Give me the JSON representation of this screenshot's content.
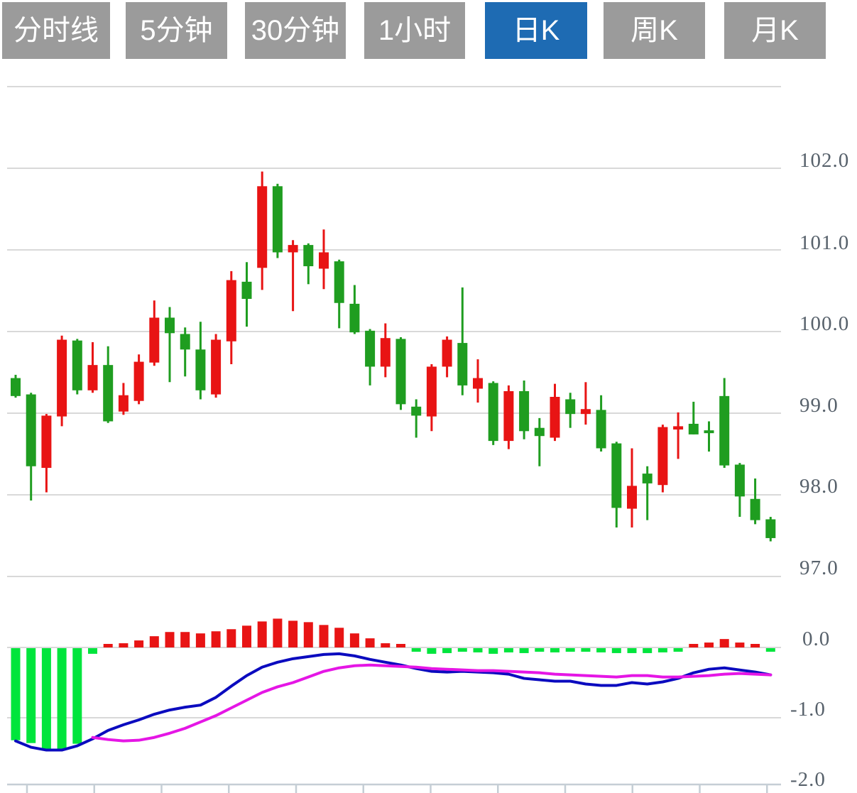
{
  "toolbar": {
    "tabs": [
      {
        "label": "分时线",
        "active": false
      },
      {
        "label": "5分钟",
        "active": false
      },
      {
        "label": "30分钟",
        "active": false
      },
      {
        "label": "1小时",
        "active": false
      },
      {
        "label": "日K",
        "active": true
      },
      {
        "label": "周K",
        "active": false
      },
      {
        "label": "月K",
        "active": false
      }
    ]
  },
  "colors": {
    "tab_bg": "#9b9b9b",
    "tab_active_bg": "#1e6bb3",
    "tab_text": "#ffffff",
    "up": "#e81414",
    "down": "#1f9d20",
    "hist_up": "#e81414",
    "hist_down": "#00e53c",
    "dif": "#0b0bbf",
    "dea": "#e516e5",
    "grid": "#d9d9d9",
    "axis": "#c5ced5",
    "label": "#57616b"
  },
  "price_axis": {
    "labels": [
      "102.0",
      "101.0",
      "100.0",
      "99.0",
      "98.0",
      "97.0"
    ],
    "values": [
      102,
      101,
      100,
      99,
      98,
      97
    ]
  },
  "macd_axis": {
    "labels": [
      "0.0",
      "-1.0",
      "-2.0"
    ],
    "values": [
      0,
      -1,
      -2
    ]
  },
  "chart_data": [
    {
      "type": "candlestick",
      "period": "日K",
      "ylabel": "price",
      "ylim": [
        96.95,
        102.2
      ],
      "gridlines": [
        102,
        101,
        100,
        99,
        98,
        97
      ],
      "up_color_convention": "red-up-green-down",
      "ohlc": [
        [
          99.43,
          99.47,
          99.19,
          99.21
        ],
        [
          99.23,
          99.25,
          97.93,
          98.35
        ],
        [
          98.33,
          98.99,
          98.03,
          98.97
        ],
        [
          98.96,
          99.95,
          98.84,
          99.9
        ],
        [
          99.89,
          99.91,
          99.23,
          99.28
        ],
        [
          99.28,
          99.87,
          99.25,
          99.59
        ],
        [
          99.59,
          99.82,
          98.88,
          98.9
        ],
        [
          99.02,
          99.37,
          98.98,
          99.22
        ],
        [
          99.15,
          99.72,
          99.11,
          99.63
        ],
        [
          99.62,
          100.38,
          99.58,
          100.17
        ],
        [
          100.17,
          100.3,
          99.38,
          99.98
        ],
        [
          99.97,
          100.05,
          99.45,
          99.78
        ],
        [
          99.78,
          100.12,
          99.17,
          99.28
        ],
        [
          99.23,
          99.97,
          99.19,
          99.9
        ],
        [
          99.88,
          100.74,
          99.6,
          100.63
        ],
        [
          100.61,
          100.85,
          100.06,
          100.4
        ],
        [
          100.78,
          101.96,
          100.51,
          101.78
        ],
        [
          101.78,
          101.81,
          100.9,
          100.97
        ],
        [
          100.97,
          101.12,
          100.25,
          101.06
        ],
        [
          101.06,
          101.08,
          100.58,
          100.8
        ],
        [
          100.77,
          101.25,
          100.52,
          100.97
        ],
        [
          100.86,
          100.88,
          100.04,
          100.35
        ],
        [
          100.34,
          100.57,
          99.97,
          99.99
        ],
        [
          100.01,
          100.03,
          99.34,
          99.57
        ],
        [
          99.57,
          100.1,
          99.44,
          99.92
        ],
        [
          99.91,
          99.93,
          99.04,
          99.11
        ],
        [
          99.08,
          99.17,
          98.7,
          98.97
        ],
        [
          98.96,
          99.6,
          98.78,
          99.57
        ],
        [
          99.57,
          99.94,
          99.44,
          99.9
        ],
        [
          99.86,
          100.54,
          99.22,
          99.34
        ],
        [
          99.3,
          99.66,
          99.13,
          99.43
        ],
        [
          99.37,
          99.39,
          98.61,
          98.66
        ],
        [
          98.66,
          99.34,
          98.56,
          99.27
        ],
        [
          99.27,
          99.4,
          98.68,
          98.78
        ],
        [
          98.82,
          98.94,
          98.35,
          98.72
        ],
        [
          98.7,
          99.36,
          98.66,
          99.2
        ],
        [
          99.17,
          99.25,
          98.82,
          98.99
        ],
        [
          98.99,
          99.38,
          98.86,
          99.05
        ],
        [
          99.04,
          99.22,
          98.53,
          98.57
        ],
        [
          98.63,
          98.65,
          97.6,
          97.84
        ],
        [
          97.83,
          98.57,
          97.6,
          98.11
        ],
        [
          98.26,
          98.35,
          97.69,
          98.14
        ],
        [
          98.12,
          98.86,
          98.03,
          98.83
        ],
        [
          98.8,
          99.01,
          98.44,
          98.84
        ],
        [
          98.87,
          99.14,
          98.74,
          98.74
        ],
        [
          98.79,
          98.9,
          98.53,
          98.76
        ],
        [
          99.21,
          99.43,
          98.33,
          98.36
        ],
        [
          98.37,
          98.39,
          97.73,
          97.98
        ],
        [
          97.95,
          98.2,
          97.64,
          97.69
        ],
        [
          97.7,
          97.73,
          97.43,
          97.47
        ]
      ]
    },
    {
      "type": "macd",
      "ylim": [
        -2.1,
        0.5
      ],
      "gridlines": [
        0,
        -1,
        -2
      ],
      "histogram": [
        -1.31,
        -1.35,
        -1.45,
        -1.45,
        -1.36,
        -0.08,
        0.03,
        0.06,
        0.1,
        0.16,
        0.22,
        0.22,
        0.2,
        0.23,
        0.26,
        0.31,
        0.37,
        0.41,
        0.38,
        0.36,
        0.32,
        0.28,
        0.2,
        0.13,
        0.06,
        0.03,
        -0.05,
        -0.08,
        -0.07,
        -0.04,
        -0.06,
        -0.08,
        -0.06,
        -0.07,
        -0.05,
        -0.06,
        -0.04,
        -0.05,
        -0.06,
        -0.07,
        -0.07,
        -0.07,
        -0.06,
        -0.02,
        0.04,
        0.07,
        0.12,
        0.07,
        0.02,
        -0.03
      ],
      "dif": [
        -1.33,
        -1.42,
        -1.46,
        -1.46,
        -1.4,
        -1.3,
        -1.18,
        -1.1,
        -1.03,
        -0.95,
        -0.89,
        -0.85,
        -0.82,
        -0.71,
        -0.55,
        -0.4,
        -0.28,
        -0.21,
        -0.16,
        -0.13,
        -0.1,
        -0.09,
        -0.12,
        -0.17,
        -0.21,
        -0.25,
        -0.3,
        -0.34,
        -0.35,
        -0.34,
        -0.35,
        -0.36,
        -0.38,
        -0.44,
        -0.46,
        -0.48,
        -0.48,
        -0.52,
        -0.54,
        -0.54,
        -0.5,
        -0.52,
        -0.49,
        -0.44,
        -0.36,
        -0.31,
        -0.29,
        -0.32,
        -0.35,
        -0.39
      ],
      "dea": [
        null,
        null,
        null,
        null,
        null,
        -1.28,
        -1.31,
        -1.33,
        -1.32,
        -1.28,
        -1.22,
        -1.15,
        -1.06,
        -0.97,
        -0.86,
        -0.75,
        -0.64,
        -0.56,
        -0.5,
        -0.42,
        -0.34,
        -0.29,
        -0.26,
        -0.25,
        -0.26,
        -0.27,
        -0.28,
        -0.3,
        -0.31,
        -0.32,
        -0.33,
        -0.33,
        -0.34,
        -0.35,
        -0.36,
        -0.38,
        -0.39,
        -0.4,
        -0.41,
        -0.42,
        -0.4,
        -0.4,
        -0.42,
        -0.42,
        -0.41,
        -0.4,
        -0.38,
        -0.37,
        -0.38,
        -0.39
      ]
    }
  ]
}
